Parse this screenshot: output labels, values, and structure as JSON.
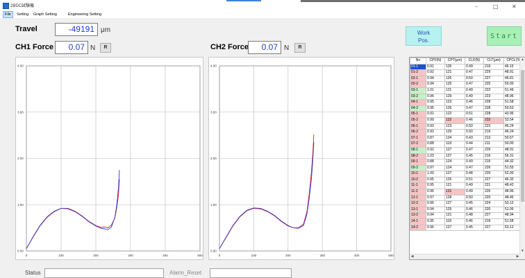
{
  "window": {
    "title": "2BDC試験機",
    "minimize": "–",
    "maximize": "□",
    "close": "✕"
  },
  "menu": {
    "items": [
      "File",
      "Setting",
      "Graph Setting",
      "Engineering Setting"
    ]
  },
  "travel": {
    "label": "Travel",
    "value": "-49191",
    "unit": "μm"
  },
  "ch1": {
    "label": "CH1 Force",
    "value": "0.07",
    "unit": "N",
    "reset": "R"
  },
  "ch2": {
    "label": "CH2 Force",
    "value": "0.07",
    "unit": "N",
    "reset": "R"
  },
  "buttons": {
    "work_line1": "Work",
    "work_line2": "Pos.",
    "start": "Start"
  },
  "status": {
    "label": "Status",
    "alarm_reset": "Alarm_Reset",
    "value": "",
    "alarm_value": ""
  },
  "colors": {
    "series_red": "#e02020",
    "series_blue": "#2a3ad8",
    "highlight_blue": "#1e4fd0",
    "highlight_pink": "#f6c4c4",
    "highlight_green": "#c8f0c8"
  },
  "chart_data": [
    {
      "type": "line",
      "xlim": [
        0,
        500
      ],
      "ylim": [
        0,
        4
      ],
      "xticks": [
        "0",
        "100",
        "200",
        "300",
        "400",
        "500"
      ],
      "yticks": [
        "0.00",
        "1.00",
        "2.00",
        "3.00",
        "4.00"
      ],
      "grid": true,
      "series": [
        {
          "color": "#e02020",
          "x": [
            0,
            20,
            40,
            60,
            80,
            100,
            120,
            140,
            160,
            180,
            200,
            215,
            225,
            235,
            245,
            255,
            260,
            265,
            268
          ],
          "y": [
            0.05,
            0.32,
            0.56,
            0.74,
            0.86,
            0.92,
            0.92,
            0.86,
            0.76,
            0.64,
            0.55,
            0.51,
            0.52,
            0.5,
            0.56,
            0.72,
            0.92,
            1.2,
            1.55
          ]
        },
        {
          "color": "#2a3ad8",
          "x": [
            0,
            20,
            40,
            60,
            80,
            100,
            120,
            140,
            160,
            180,
            200,
            215,
            225,
            235,
            245,
            255,
            260,
            265,
            268
          ],
          "y": [
            0.05,
            0.31,
            0.55,
            0.73,
            0.85,
            0.92,
            0.91,
            0.85,
            0.75,
            0.63,
            0.54,
            0.49,
            0.48,
            0.46,
            0.52,
            0.74,
            0.98,
            1.35,
            1.75
          ]
        }
      ]
    },
    {
      "type": "line",
      "xlim": [
        0,
        500
      ],
      "ylim": [
        0,
        4
      ],
      "xticks": [
        "0",
        "100",
        "200",
        "300",
        "400",
        "500"
      ],
      "yticks": [
        "0.00",
        "1.00",
        "2.00",
        "3.00",
        "4.00"
      ],
      "grid": true,
      "series": [
        {
          "color": "#e02020",
          "x": [
            0,
            20,
            40,
            60,
            80,
            100,
            120,
            140,
            160,
            180,
            200,
            215,
            230,
            245,
            255,
            262,
            268,
            272,
            275
          ],
          "y": [
            0.05,
            0.3,
            0.55,
            0.74,
            0.87,
            0.92,
            0.91,
            0.85,
            0.76,
            0.64,
            0.54,
            0.5,
            0.5,
            0.58,
            0.85,
            1.25,
            1.7,
            2.1,
            2.52
          ]
        },
        {
          "color": "#2a3ad8",
          "x": [
            0,
            20,
            40,
            60,
            80,
            100,
            120,
            140,
            160,
            180,
            200,
            215,
            230,
            245,
            255,
            262,
            268,
            272,
            275
          ],
          "y": [
            0.05,
            0.31,
            0.56,
            0.75,
            0.88,
            0.93,
            0.92,
            0.86,
            0.77,
            0.65,
            0.55,
            0.5,
            0.49,
            0.55,
            0.8,
            1.15,
            1.55,
            1.95,
            2.35
          ]
        }
      ]
    }
  ],
  "table": {
    "headers": [
      "No",
      "CPF(N)",
      "CPT(μm)",
      "CLF(N)",
      "CLT(μm)",
      "CPCL(%)"
    ],
    "rows": [
      [
        "01-1",
        "0.91",
        "126",
        "0.49",
        "219",
        "46.15"
      ],
      [
        "01-2",
        "0.92",
        "121",
        "0.47",
        "229",
        "48.91"
      ],
      [
        "02-1",
        "0.94",
        "126",
        "0.50",
        "227",
        "46.81"
      ],
      [
        "02-2",
        "0.94",
        "125",
        "0.47",
        "225",
        "50.00"
      ],
      [
        "03-1",
        "1.01",
        "121",
        "0.49",
        "222",
        "51.49"
      ],
      [
        "03-2",
        "0.96",
        "129",
        "0.49",
        "223",
        "48.96"
      ],
      [
        "04-1",
        "0.95",
        "123",
        "0.46",
        "228",
        "51.58"
      ],
      [
        "04-2",
        "0.95",
        "126",
        "0.47",
        "228",
        "50.53"
      ],
      [
        "05-1",
        "0.91",
        "122",
        "0.51",
        "228",
        "43.96"
      ],
      [
        "05-2",
        "0.99",
        "132",
        "0.46",
        "232",
        "53.54"
      ],
      [
        "06-1",
        "0.93",
        "123",
        "0.50",
        "223",
        "46.24"
      ],
      [
        "06-2",
        "0.93",
        "129",
        "0.50",
        "219",
        "46.24"
      ],
      [
        "07-1",
        "0.87",
        "124",
        "0.43",
        "213",
        "50.57"
      ],
      [
        "07-2",
        "0.88",
        "118",
        "0.44",
        "211",
        "50.00"
      ],
      [
        "08-1",
        "0.92",
        "127",
        "0.47",
        "226",
        "48.91"
      ],
      [
        "08-2",
        "1.03",
        "127",
        "0.45",
        "219",
        "56.31"
      ],
      [
        "09-1",
        "0.88",
        "124",
        "0.49",
        "215",
        "44.32"
      ],
      [
        "09-2",
        "0.97",
        "124",
        "0.47",
        "226",
        "51.55"
      ],
      [
        "10-1",
        "1.00",
        "127",
        "0.48",
        "220",
        "52.00"
      ],
      [
        "10-2",
        "0.95",
        "126",
        "0.51",
        "227",
        "46.32"
      ],
      [
        "11-1",
        "0.95",
        "121",
        "0.49",
        "221",
        "48.42"
      ],
      [
        "11-2",
        "0.96",
        "131",
        "0.49",
        "226",
        "48.96"
      ],
      [
        "12-1",
        "0.97",
        "128",
        "0.50",
        "220",
        "48.45"
      ],
      [
        "12-2",
        "0.96",
        "127",
        "0.45",
        "224",
        "53.12"
      ],
      [
        "13-1",
        "0.94",
        "125",
        "0.46",
        "220",
        "51.06"
      ],
      [
        "13-2",
        "0.94",
        "121",
        "0.48",
        "227",
        "48.94"
      ],
      [
        "14-1",
        "0.95",
        "118",
        "0.46",
        "219",
        "51.58"
      ],
      [
        "14-2",
        "0.96",
        "127",
        "0.45",
        "227",
        "53.12"
      ]
    ],
    "no_cell_colors": [
      "blue",
      "pink",
      "pink",
      "pink",
      "green",
      "green",
      "pink",
      "green",
      "pink",
      "pink",
      "pink",
      "pink",
      "pink",
      "pink",
      "green",
      "pink",
      "pink",
      "green",
      "pink",
      "pink",
      "pink",
      "pink",
      "pink",
      "pink",
      "pink",
      "pink",
      "pink",
      "pink"
    ],
    "pink_cells": [
      [
        9,
        2
      ],
      [
        9,
        4
      ],
      [
        21,
        2
      ]
    ],
    "scroll_up": "▲",
    "scroll_down": "▼",
    "scroll_left": "◀",
    "scroll_right": "▶"
  }
}
